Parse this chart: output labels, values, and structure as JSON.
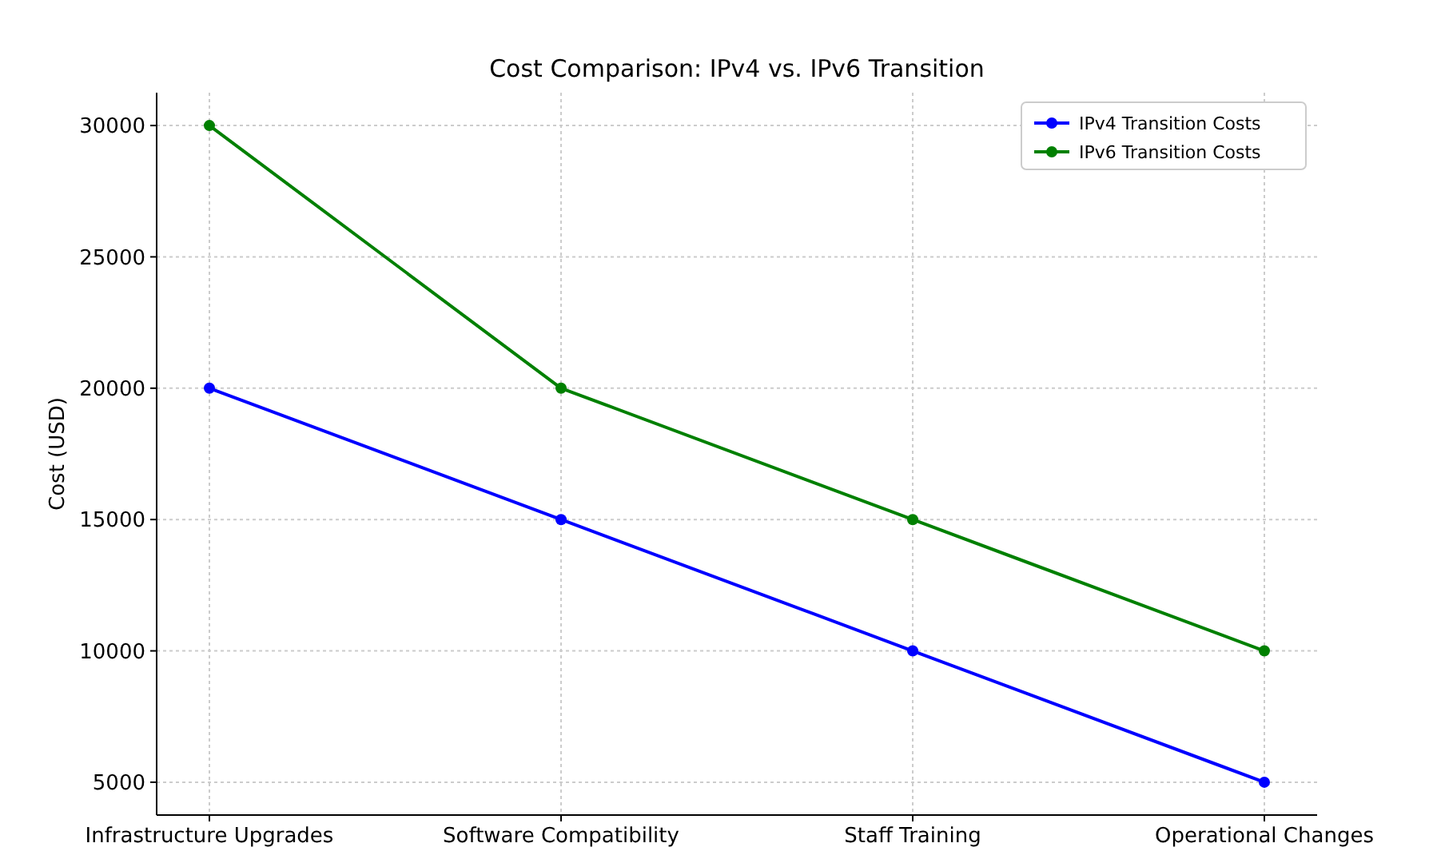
{
  "chart_data": {
    "type": "line",
    "title": "Cost Comparison: IPv4 vs. IPv6 Transition",
    "ylabel": "Cost (USD)",
    "categories": [
      "Infrastructure Upgrades",
      "Software Compatibility",
      "Staff Training",
      "Operational Changes"
    ],
    "series": [
      {
        "name": "IPv4 Transition Costs",
        "color": "#0000ff",
        "values": [
          20000,
          15000,
          10000,
          5000
        ]
      },
      {
        "name": "IPv6 Transition Costs",
        "color": "#008000",
        "values": [
          30000,
          20000,
          15000,
          10000
        ]
      }
    ],
    "ylim": [
      3750,
      31250
    ],
    "yticks": [
      5000,
      10000,
      15000,
      20000,
      25000,
      30000
    ],
    "grid": true,
    "legend": "top right",
    "marker": "circle",
    "line_style": "solid"
  }
}
